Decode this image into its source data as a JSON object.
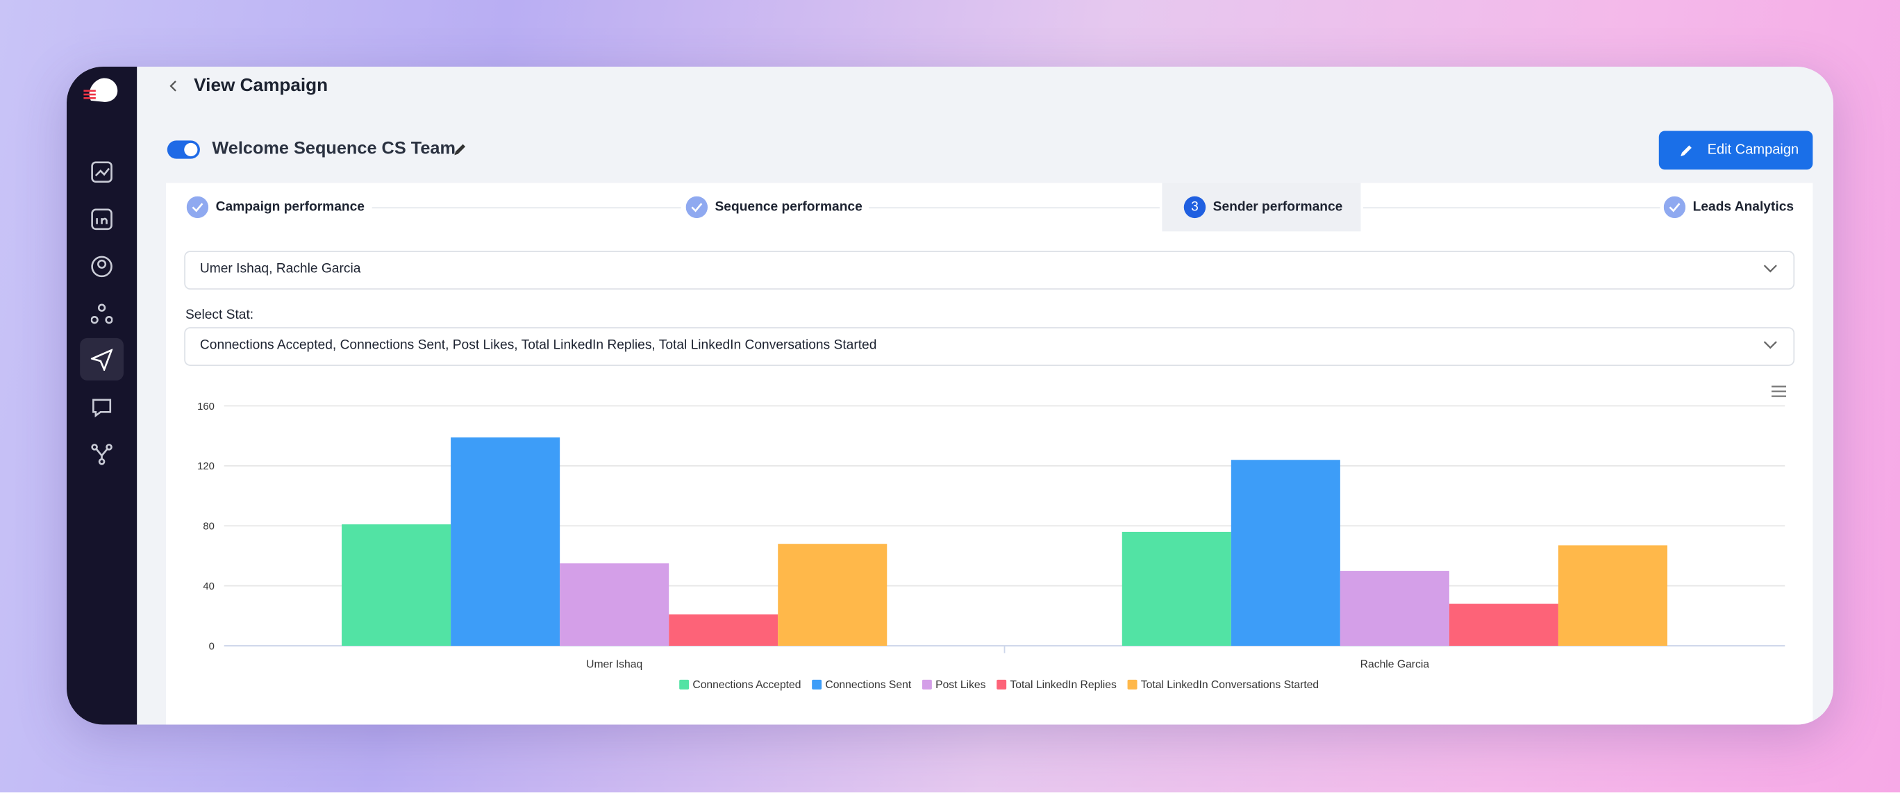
{
  "header": {
    "title": "View Campaign"
  },
  "campaign": {
    "name": "Welcome Sequence CS Team",
    "edit_button": "Edit Campaign"
  },
  "steps": [
    {
      "label": "Campaign performance"
    },
    {
      "label": "Sequence performance"
    },
    {
      "number": 3,
      "label": "Sender performance"
    },
    {
      "label": "Leads Analytics"
    }
  ],
  "filters": {
    "senders": "Umer Ishaq, Rachle Garcia",
    "stat_label": "Select Stat:",
    "stats": "Connections Accepted, Connections Sent, Post Likes, Total LinkedIn Replies, Total LinkedIn Conversations Started"
  },
  "chart_data": {
    "type": "bar",
    "categories": [
      "Umer Ishaq",
      "Rachle Garcia"
    ],
    "series": [
      {
        "name": "Connections Accepted",
        "color": "#52e3a4",
        "values": [
          81,
          76
        ]
      },
      {
        "name": "Connections Sent",
        "color": "#3d9df8",
        "values": [
          139,
          124
        ]
      },
      {
        "name": "Post Likes",
        "color": "#d49fe8",
        "values": [
          55,
          50
        ]
      },
      {
        "name": "Total LinkedIn Replies",
        "color": "#fd6378",
        "values": [
          21,
          28
        ]
      },
      {
        "name": "Total LinkedIn Conversations Started",
        "color": "#ffb84a",
        "values": [
          68,
          67
        ]
      }
    ],
    "ylim": [
      0,
      160
    ],
    "yticks": [
      0,
      40,
      80,
      120,
      160
    ],
    "grid": true,
    "legend": "bottom"
  }
}
